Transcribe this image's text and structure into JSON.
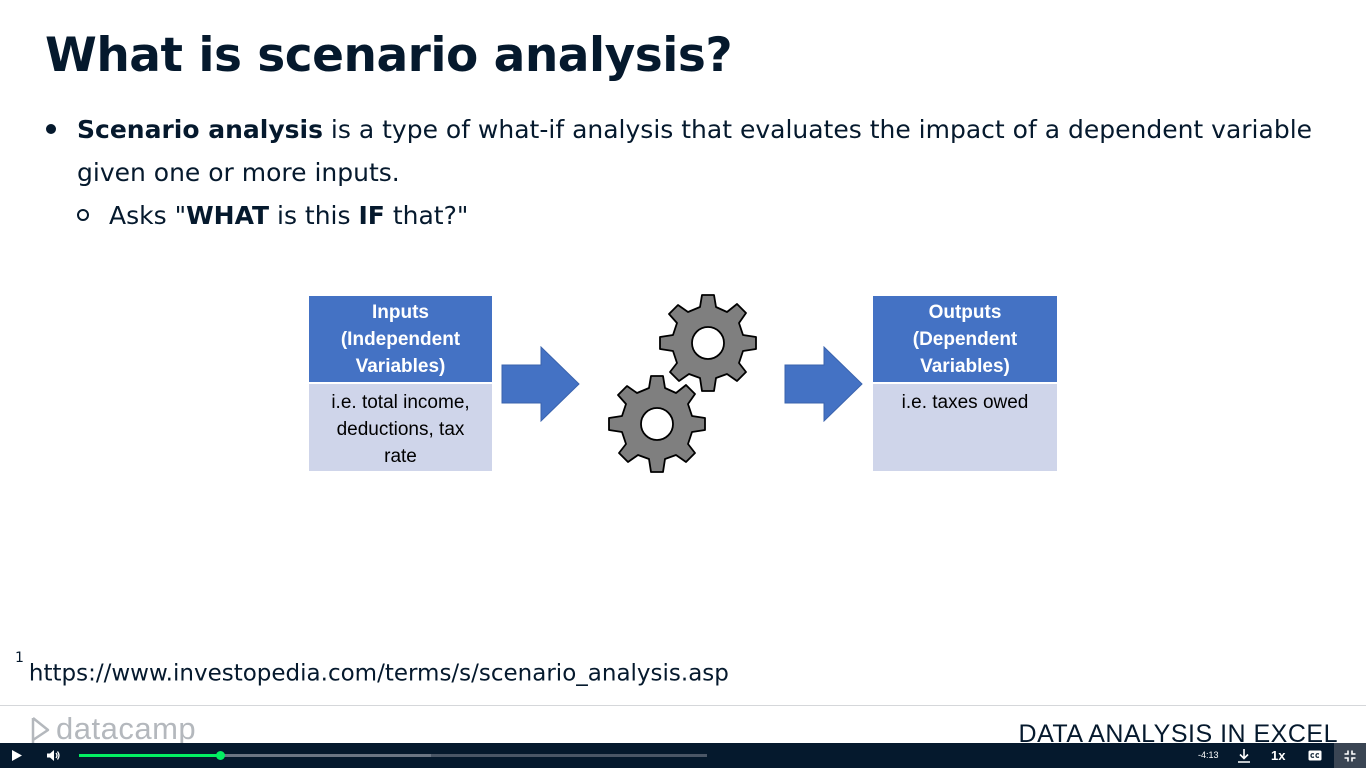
{
  "slide": {
    "title": "What is scenario analysis?",
    "bullet1": {
      "bold": "Scenario analysis",
      "text": " is a type of what-if analysis that evaluates the impact of a dependent variable given one or more inputs."
    },
    "bullet2": {
      "prefix": "Asks \"",
      "bold1": "WHAT",
      "mid": " is this ",
      "bold2": "IF",
      "suffix": " that?\""
    },
    "diagram": {
      "inputs_header": "Inputs\n(Independent\nVariables)",
      "inputs_body": "i.e. total income,\ndeductions, tax\nrate",
      "outputs_header": "Outputs\n(Dependent\nVariables)",
      "outputs_body": "i.e. taxes owed",
      "arrow_icon": "right-arrow-icon",
      "process_icon": "gears-icon",
      "colors": {
        "header": "#4472c4",
        "body": "#cfd5ea",
        "arrow": "#4472c4",
        "gear": "#7f7f7f"
      }
    },
    "footnote": {
      "marker": "1",
      "url": "https://www.investopedia.com/terms/s/scenario_analysis.asp"
    },
    "brand": "datacamp",
    "course": "DATA ANALYSIS IN EXCEL"
  },
  "player": {
    "time_remaining": "-4:13",
    "speed": "1x",
    "progress": 0.225,
    "buffered": 0.56,
    "accent_color": "#03ef62",
    "icons": [
      "play-icon",
      "volume-icon",
      "download-icon",
      "captions-icon",
      "exit-fullscreen-icon"
    ]
  }
}
